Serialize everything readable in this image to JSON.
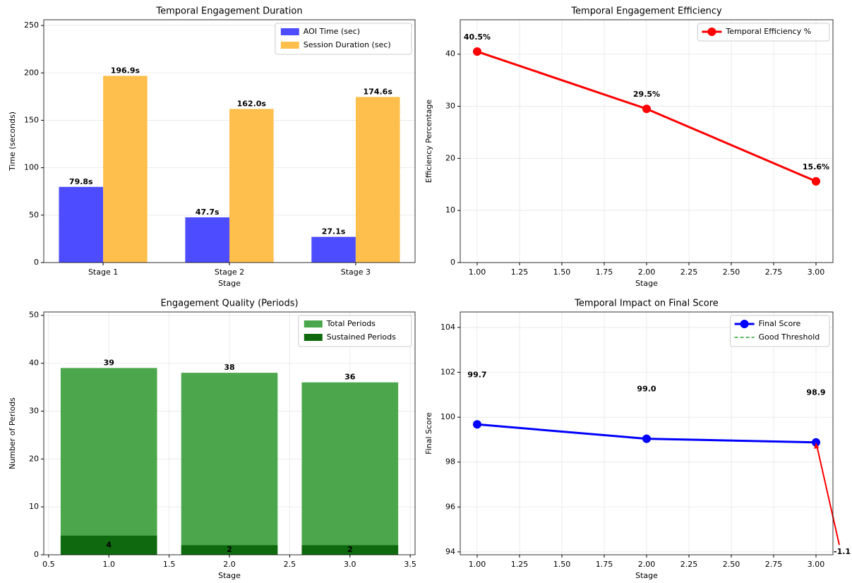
{
  "chart_data": [
    {
      "type": "grouped_bar",
      "title": "Temporal Engagement Duration",
      "xlabel": "Stage",
      "ylabel": "Time (seconds)",
      "categories": [
        "Stage 1",
        "Stage 2",
        "Stage 3"
      ],
      "series": [
        {
          "name": "AOI Time (sec)",
          "color": "#4d4dff",
          "values": [
            79.8,
            47.7,
            27.1
          ],
          "value_labels": [
            "79.8s",
            "47.7s",
            "27.1s"
          ]
        },
        {
          "name": "Session Duration (sec)",
          "color": "#ffbf4d",
          "values": [
            196.9,
            162.0,
            174.6
          ],
          "value_labels": [
            "196.9s",
            "162.0s",
            "174.6s"
          ]
        }
      ],
      "ylim": [
        0,
        256
      ],
      "yticks": [
        0,
        50,
        100,
        150,
        200,
        250
      ],
      "grid": "y",
      "legend": "upper right"
    },
    {
      "type": "line",
      "title": "Temporal Engagement Efficiency",
      "xlabel": "Stage",
      "ylabel": "Efficiency Percentage",
      "x": [
        1,
        2,
        3
      ],
      "series": [
        {
          "name": "Temporal Efficiency %",
          "color": "#ff0000",
          "values": [
            40.5,
            29.5,
            15.6
          ],
          "value_labels": [
            "40.5%",
            "29.5%",
            "15.6%"
          ]
        }
      ],
      "xlim": [
        0.9,
        3.1
      ],
      "xticks": [
        {
          "value": 1,
          "label": "1.00"
        },
        {
          "value": 1.25,
          "label": "1.25"
        },
        {
          "value": 1.5,
          "label": "1.50"
        },
        {
          "value": 1.75,
          "label": "1.75"
        },
        {
          "value": 2,
          "label": "2.00"
        },
        {
          "value": 2.25,
          "label": "2.25"
        },
        {
          "value": 2.5,
          "label": "2.50"
        },
        {
          "value": 2.75,
          "label": "2.75"
        },
        {
          "value": 3,
          "label": "3.00"
        }
      ],
      "ylim": [
        0,
        46.6
      ],
      "yticks": [
        0,
        10,
        20,
        30,
        40
      ],
      "grid": "both",
      "legend": "upper right"
    },
    {
      "type": "overlay_bar",
      "title": "Engagement Quality (Periods)",
      "xlabel": "Stage",
      "ylabel": "Number of Periods",
      "x": [
        1,
        2,
        3
      ],
      "series": [
        {
          "name": "Total Periods",
          "color": "#4ca64c",
          "values": [
            39,
            38,
            36
          ]
        },
        {
          "name": "Sustained Periods",
          "color": "#0f6a0f",
          "values": [
            4,
            2,
            2
          ]
        }
      ],
      "xlim": [
        0.46,
        3.54
      ],
      "xticks": [
        0.5,
        {
          "value": 1,
          "label": "1.0"
        },
        1.5,
        {
          "value": 2,
          "label": "2.0"
        },
        2.5,
        {
          "value": 3,
          "label": "3.0"
        },
        3.5
      ],
      "ylim": [
        0,
        50.7
      ],
      "yticks": [
        0,
        10,
        20,
        30,
        40,
        50
      ],
      "grid": "both",
      "legend": "upper right"
    },
    {
      "type": "line",
      "title": "Temporal Impact on Final Score",
      "xlabel": "Stage",
      "ylabel": "Final Score",
      "x": [
        1,
        2,
        3
      ],
      "series": [
        {
          "name": "Final Score",
          "color": "#0000ff",
          "values": [
            99.68,
            99.04,
            98.88
          ],
          "value_labels": [
            "99.7",
            "99.0",
            "98.9"
          ]
        }
      ],
      "reference_lines": [
        {
          "name": "Good Threshold",
          "color": "#2ca02c"
        }
      ],
      "annotation": {
        "text": "-1.1",
        "color": "#ff0000"
      },
      "xlim": [
        0.9,
        3.1
      ],
      "xticks": [
        {
          "value": 1,
          "label": "1.00"
        },
        {
          "value": 1.25,
          "label": "1.25"
        },
        {
          "value": 1.5,
          "label": "1.50"
        },
        {
          "value": 1.75,
          "label": "1.75"
        },
        {
          "value": 2,
          "label": "2.00"
        },
        {
          "value": 2.25,
          "label": "2.25"
        },
        {
          "value": 2.5,
          "label": "2.50"
        },
        {
          "value": 2.75,
          "label": "2.75"
        },
        {
          "value": 3,
          "label": "3.00"
        }
      ],
      "ylim": [
        93.87,
        104.69
      ],
      "yticks": [
        94,
        96,
        98,
        100,
        102,
        104
      ],
      "grid": "both",
      "legend": "upper right"
    }
  ]
}
